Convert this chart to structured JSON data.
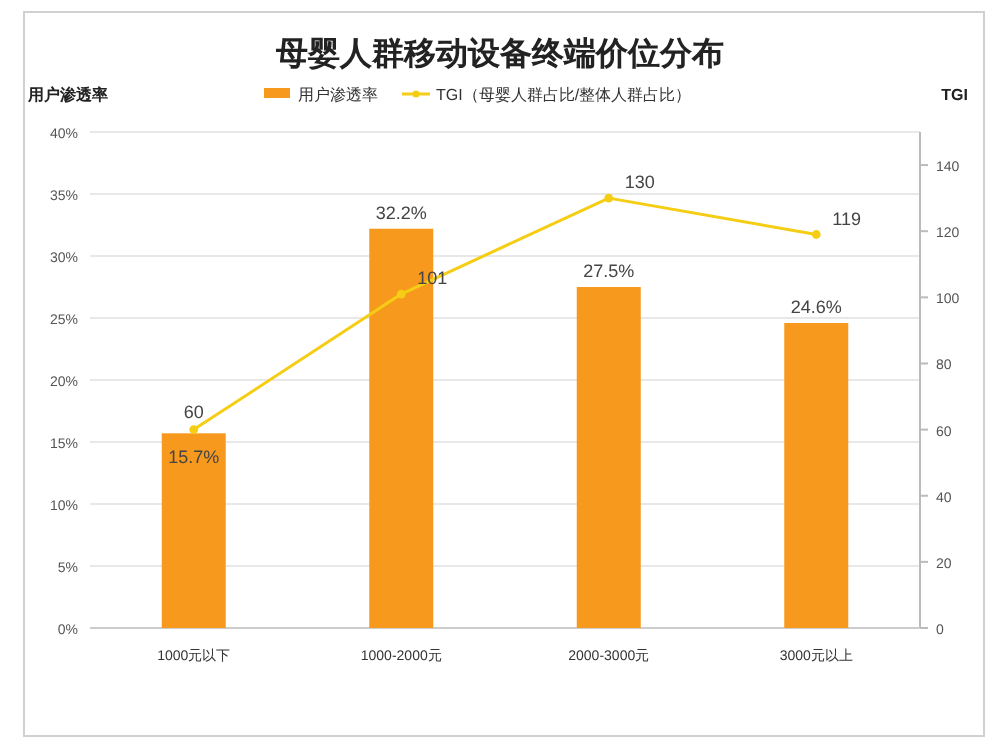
{
  "chart_data": {
    "type": "bar",
    "title": "母婴人群移动设备终端价位分布",
    "ylabel": "用户渗透率",
    "y2label": "TGI",
    "categories": [
      "1000元以下",
      "1000-2000元",
      "2000-3000元",
      "3000元以上"
    ],
    "series": [
      {
        "name": "用户渗透率",
        "color": "#f7991c",
        "values": [
          15.7,
          32.2,
          27.5,
          24.6
        ],
        "value_labels": [
          "15.7%",
          "32.2%",
          "27.5%",
          "24.6%"
        ]
      },
      {
        "name": "TGI（母婴人群占比/整体人群占比）",
        "type": "line",
        "axis": "y2",
        "color": "#f5cd14",
        "marker": "circle",
        "values": [
          60,
          101,
          130,
          119
        ],
        "value_labels": [
          "60",
          "101",
          "130",
          "119"
        ]
      }
    ],
    "ylim": [
      0,
      40
    ],
    "yticks": [
      {
        "value": 0,
        "label": "0%"
      },
      {
        "value": 5,
        "label": "5%"
      },
      {
        "value": 10,
        "label": "10%"
      },
      {
        "value": 15,
        "label": "15%"
      },
      {
        "value": 20,
        "label": "20%"
      },
      {
        "value": 25,
        "label": "25%"
      },
      {
        "value": 30,
        "label": "30%"
      },
      {
        "value": 35,
        "label": "35%"
      },
      {
        "value": 40,
        "label": "40%"
      }
    ],
    "y2lim": [
      0,
      150
    ],
    "y2ticks": [
      0,
      20,
      40,
      60,
      80,
      100,
      120,
      140
    ],
    "grid": "y",
    "legend": "top"
  }
}
